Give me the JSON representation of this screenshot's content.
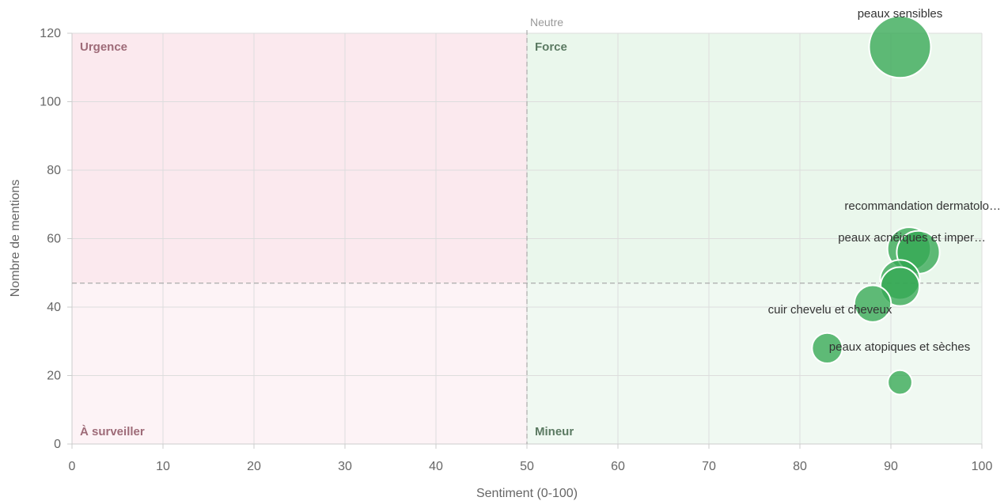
{
  "chart_data": {
    "type": "scatter",
    "variant": "bubble",
    "xlabel": "Sentiment (0-100)",
    "ylabel": "Nombre de mentions",
    "xlim": [
      0,
      100
    ],
    "ylim": [
      0,
      120
    ],
    "xticks": [
      0,
      10,
      20,
      30,
      40,
      50,
      60,
      70,
      80,
      90,
      100
    ],
    "yticks": [
      0,
      20,
      40,
      60,
      80,
      100,
      120
    ],
    "grid": true,
    "legend": "none",
    "threshold_x": 50,
    "threshold_y": 47,
    "neutral_label": "Neutre",
    "quadrants": {
      "top_left": "Urgence",
      "top_right": "Force",
      "bottom_left": "À surveiller",
      "bottom_right": "Mineur"
    },
    "colors": {
      "bubble": "#34a853",
      "negative_zone": "#fbe9ee",
      "positive_zone": "#eaf7ec",
      "negative_text": "#9e6b78",
      "positive_text": "#5b7a62"
    },
    "points": [
      {
        "x": 91,
        "y": 116,
        "size": 116,
        "label": "peaux sensibles"
      },
      {
        "x": 92,
        "y": 57,
        "size": 57,
        "label": ""
      },
      {
        "x": 93,
        "y": 56,
        "size": 56,
        "label": "peaux acnéiques et imper…"
      },
      {
        "x": 91,
        "y": 48,
        "size": 48,
        "label": ""
      },
      {
        "x": 91,
        "y": 46,
        "size": 46,
        "label": ""
      },
      {
        "x": 88,
        "y": 41,
        "size": 41,
        "label": "cuir chevelu et cheveux"
      },
      {
        "x": 83,
        "y": 28,
        "size": 28,
        "label": "peaux atopiques et sèches"
      },
      {
        "x": 91,
        "y": 18,
        "size": 18,
        "label": ""
      }
    ],
    "extra_labels": [
      "recommandation dermatolo…"
    ]
  }
}
